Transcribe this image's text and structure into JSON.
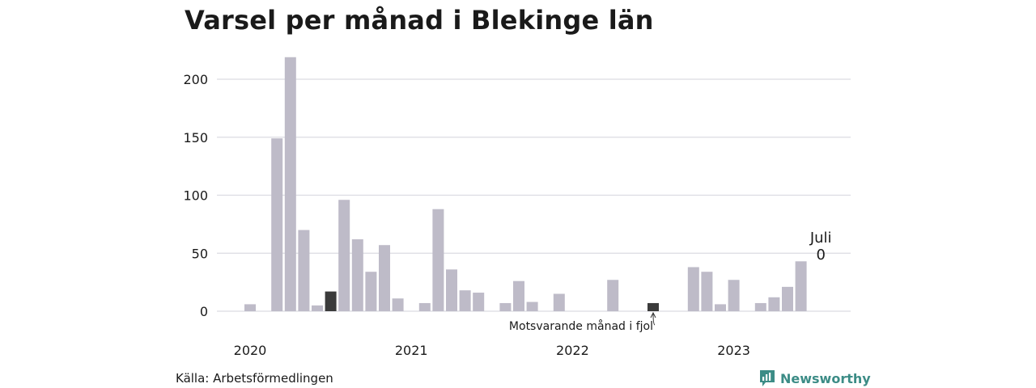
{
  "title": "Varsel per månad i Blekinge län",
  "source": "Källa: Arbetsförmedlingen",
  "brand": {
    "name": "Newsworthy",
    "icon": "newsworthy-logo-icon",
    "color": "#3c8c86"
  },
  "colors": {
    "bar": "#bebbc8",
    "highlight": "#3b3b3b",
    "grid": "#dcdce2"
  },
  "annotation": {
    "text": "Motsvarande månad i fjol"
  },
  "last_label": {
    "month": "Juli",
    "value": "0"
  },
  "chart_data": {
    "type": "bar",
    "title": "Varsel per månad i Blekinge län",
    "xlabel": "",
    "ylabel": "",
    "ylim": [
      0,
      225
    ],
    "yticks": [
      0,
      50,
      100,
      150,
      200
    ],
    "year_labels": [
      "2020",
      "2021",
      "2022",
      "2023"
    ],
    "categories": [
      "2020-01",
      "2020-02",
      "2020-03",
      "2020-04",
      "2020-05",
      "2020-06",
      "2020-07",
      "2020-08",
      "2020-09",
      "2020-10",
      "2020-11",
      "2020-12",
      "2021-01",
      "2021-02",
      "2021-03",
      "2021-04",
      "2021-05",
      "2021-06",
      "2021-07",
      "2021-08",
      "2021-09",
      "2021-10",
      "2021-11",
      "2021-12",
      "2022-01",
      "2022-02",
      "2022-03",
      "2022-04",
      "2022-05",
      "2022-06",
      "2022-07",
      "2022-08",
      "2022-09",
      "2022-10",
      "2022-11",
      "2022-12",
      "2023-01",
      "2023-02",
      "2023-03",
      "2023-04",
      "2023-05",
      "2023-06",
      "2023-07"
    ],
    "values": [
      6,
      0,
      149,
      219,
      70,
      5,
      17,
      96,
      62,
      34,
      57,
      11,
      0,
      7,
      88,
      36,
      18,
      16,
      0,
      7,
      26,
      8,
      0,
      15,
      0,
      0,
      0,
      27,
      0,
      0,
      7,
      0,
      0,
      38,
      34,
      6,
      27,
      0,
      7,
      12,
      21,
      43,
      0
    ],
    "highlight": [
      "2020-07",
      "2022-07"
    ],
    "grid": true,
    "legend": "none"
  }
}
